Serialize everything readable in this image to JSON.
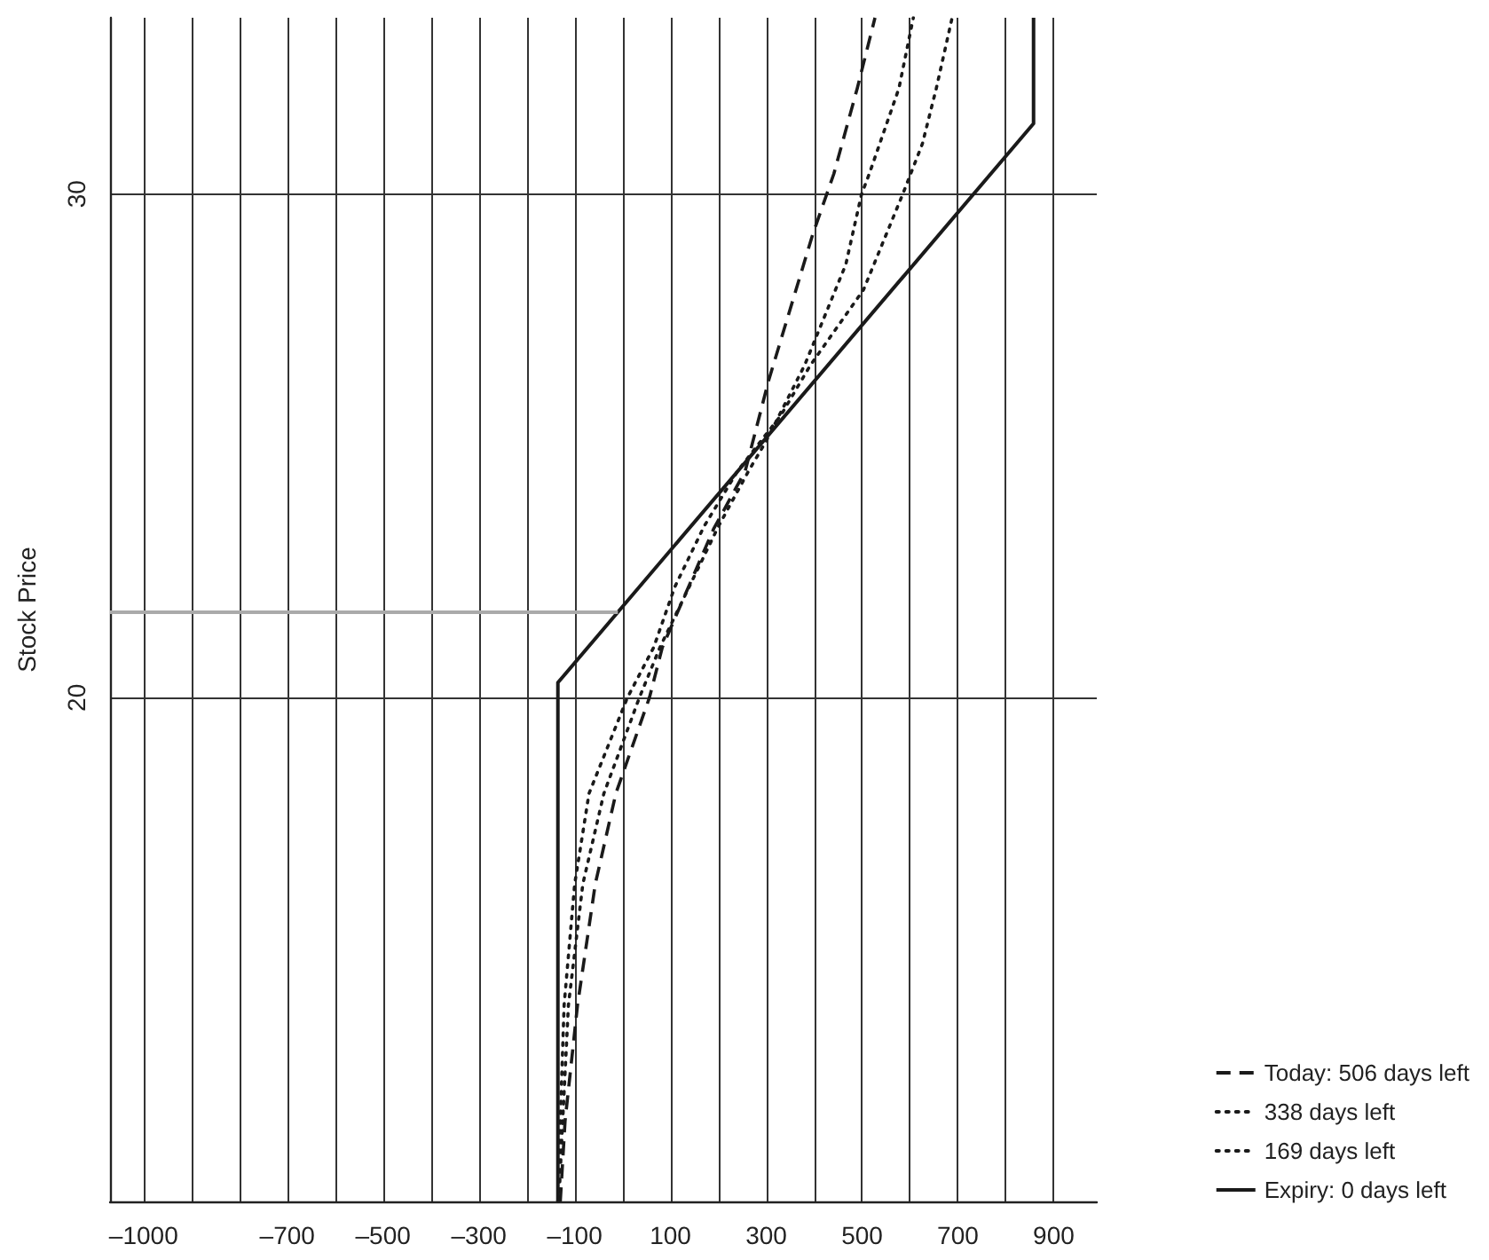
{
  "chart_data": {
    "type": "line",
    "ylabel": "Stock Price",
    "xlim": [
      -1070,
      990
    ],
    "ylim": [
      10,
      33.5
    ],
    "xticks": [
      {
        "value": -1000,
        "label": "–1000"
      },
      {
        "value": -900,
        "label": null
      },
      {
        "value": -800,
        "label": null
      },
      {
        "value": -700,
        "label": "–700"
      },
      {
        "value": -600,
        "label": null
      },
      {
        "value": -500,
        "label": "–500"
      },
      {
        "value": -400,
        "label": null
      },
      {
        "value": -300,
        "label": "–300"
      },
      {
        "value": -200,
        "label": null
      },
      {
        "value": -100,
        "label": "–100"
      },
      {
        "value": 0,
        "label": null
      },
      100,
      {
        "value": 200,
        "label": null
      },
      300,
      {
        "value": 400,
        "label": null
      },
      500,
      {
        "value": 600,
        "label": null
      },
      700,
      {
        "value": 800,
        "label": null
      },
      900
    ],
    "yticks": [
      20,
      30
    ],
    "grid": true,
    "legend": "bottom right",
    "marker": "none",
    "ref_lines": [
      {
        "axis": "y",
        "value": 21.7,
        "color": "#aaaaaa"
      }
    ],
    "series": [
      {
        "name": "Today: 506 days left",
        "color": "#1a1a1a",
        "line_style": "dashed",
        "x": [
          -130,
          -120,
          -94,
          -57,
          -14,
          56,
          83,
          190,
          256,
          305,
          397,
          441,
          490,
          527
        ],
        "values": [
          10,
          11.6,
          13.9,
          16.3,
          18.1,
          20,
          21,
          23.35,
          24.5,
          26.3,
          29.2,
          30.4,
          32.1,
          33.5
        ]
      },
      {
        "name": "338 days left",
        "color": "#1a1a1a",
        "line_style": "dotted",
        "x": [
          -133,
          -125,
          -113,
          -83,
          -39,
          35,
          78,
          200,
          263,
          300,
          380,
          466,
          499,
          515,
          577,
          607
        ],
        "values": [
          10,
          11.6,
          13.9,
          16.3,
          18.1,
          20,
          21,
          23.4,
          24.5,
          25.1,
          26.6,
          28.6,
          30,
          30.4,
          32.1,
          33.5
        ]
      },
      {
        "name": "169 days left",
        "color": "#1a1a1a",
        "line_style": "dotted",
        "x": [
          -135,
          -130,
          -122,
          -100,
          -70,
          10,
          65,
          109,
          170,
          240,
          330,
          392,
          503,
          585,
          626,
          655,
          688
        ],
        "values": [
          10,
          11.6,
          13.9,
          16.3,
          18.1,
          20,
          21,
          22.2,
          23.4,
          24.5,
          25.6,
          26.6,
          28.1,
          30,
          31,
          32.1,
          33.5
        ]
      },
      {
        "name": "Expiry: 0 days left",
        "color": "#1a1a1a",
        "line_style": "solid",
        "x": [
          -135,
          -135,
          858,
          858
        ],
        "values": [
          10,
          20.3,
          31.4,
          33.5
        ]
      }
    ]
  }
}
